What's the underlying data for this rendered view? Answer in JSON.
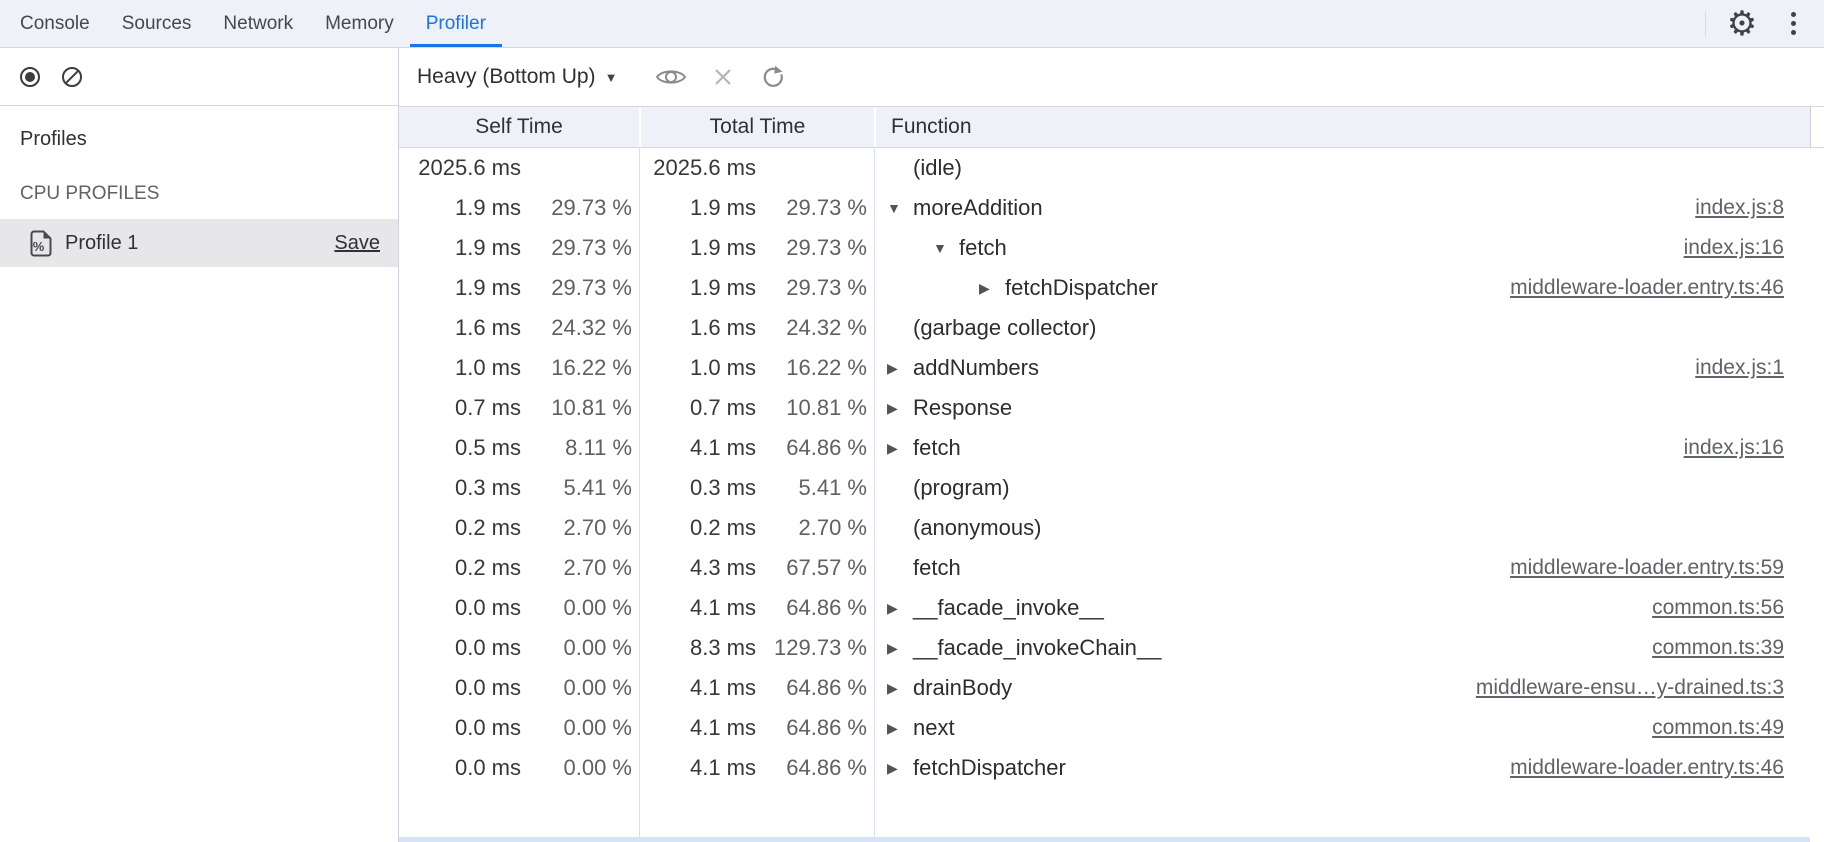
{
  "colors": {
    "accent_blue": "#1a73e8",
    "panel_header_bg": "#eef1f8",
    "grid_border": "#d9e1f1",
    "selected_profile_bg": "#e7e7e9",
    "link_gray": "#5f6368"
  },
  "tabbar": {
    "tabs": [
      {
        "id": "console",
        "label": "Console"
      },
      {
        "id": "sources",
        "label": "Sources"
      },
      {
        "id": "network",
        "label": "Network"
      },
      {
        "id": "memory",
        "label": "Memory"
      },
      {
        "id": "profiler",
        "label": "Profiler"
      }
    ],
    "active_tab": "Profiler",
    "right_icons": [
      "gear-icon",
      "kebab-menu-icon"
    ]
  },
  "sidebar": {
    "toolbar_icons": [
      "record-icon",
      "clear-icon"
    ],
    "profiles_heading": "Profiles",
    "section_label": "CPU PROFILES",
    "profile": {
      "name": "Profile 1",
      "save_label": "Save",
      "icon": "profile-file-icon"
    }
  },
  "toolbar": {
    "view_mode": "Heavy (Bottom Up)",
    "chevron": "▼",
    "icons": [
      "visibility-eye-icon",
      "close-x-icon",
      "refresh-icon"
    ]
  },
  "tree_icons": {
    "expanded": "▼",
    "collapsed": "▶"
  },
  "table": {
    "columns": [
      "Self Time",
      "Total Time",
      "Function"
    ],
    "rows": [
      {
        "self": "2025.6 ms",
        "self_pct": "",
        "total": "2025.6 ms",
        "total_pct": "",
        "fn": "(idle)",
        "link": "",
        "level": 0,
        "arrow": "none"
      },
      {
        "self": "1.9 ms",
        "self_pct": "29.73 %",
        "total": "1.9 ms",
        "total_pct": "29.73 %",
        "fn": "moreAddition",
        "link": "index.js:8",
        "level": 0,
        "arrow": "expanded"
      },
      {
        "self": "1.9 ms",
        "self_pct": "29.73 %",
        "total": "1.9 ms",
        "total_pct": "29.73 %",
        "fn": "fetch",
        "link": "index.js:16",
        "level": 1,
        "arrow": "expanded"
      },
      {
        "self": "1.9 ms",
        "self_pct": "29.73 %",
        "total": "1.9 ms",
        "total_pct": "29.73 %",
        "fn": "fetchDispatcher",
        "link": "middleware-loader.entry.ts:46",
        "level": 2,
        "arrow": "collapsed"
      },
      {
        "self": "1.6 ms",
        "self_pct": "24.32 %",
        "total": "1.6 ms",
        "total_pct": "24.32 %",
        "fn": "(garbage collector)",
        "link": "",
        "level": 0,
        "arrow": "none"
      },
      {
        "self": "1.0 ms",
        "self_pct": "16.22 %",
        "total": "1.0 ms",
        "total_pct": "16.22 %",
        "fn": "addNumbers",
        "link": "index.js:1",
        "level": 0,
        "arrow": "collapsed"
      },
      {
        "self": "0.7 ms",
        "self_pct": "10.81 %",
        "total": "0.7 ms",
        "total_pct": "10.81 %",
        "fn": "Response",
        "link": "",
        "level": 0,
        "arrow": "collapsed"
      },
      {
        "self": "0.5 ms",
        "self_pct": "8.11 %",
        "total": "4.1 ms",
        "total_pct": "64.86 %",
        "fn": "fetch",
        "link": "index.js:16",
        "level": 0,
        "arrow": "collapsed"
      },
      {
        "self": "0.3 ms",
        "self_pct": "5.41 %",
        "total": "0.3 ms",
        "total_pct": "5.41 %",
        "fn": "(program)",
        "link": "",
        "level": 0,
        "arrow": "none"
      },
      {
        "self": "0.2 ms",
        "self_pct": "2.70 %",
        "total": "0.2 ms",
        "total_pct": "2.70 %",
        "fn": "(anonymous)",
        "link": "",
        "level": 0,
        "arrow": "none"
      },
      {
        "self": "0.2 ms",
        "self_pct": "2.70 %",
        "total": "4.3 ms",
        "total_pct": "67.57 %",
        "fn": "fetch",
        "link": "middleware-loader.entry.ts:59",
        "level": 0,
        "arrow": "none"
      },
      {
        "self": "0.0 ms",
        "self_pct": "0.00 %",
        "total": "4.1 ms",
        "total_pct": "64.86 %",
        "fn": "__facade_invoke__",
        "link": "common.ts:56",
        "level": 0,
        "arrow": "collapsed"
      },
      {
        "self": "0.0 ms",
        "self_pct": "0.00 %",
        "total": "8.3 ms",
        "total_pct": "129.73 %",
        "fn": "__facade_invokeChain__",
        "link": "common.ts:39",
        "level": 0,
        "arrow": "collapsed"
      },
      {
        "self": "0.0 ms",
        "self_pct": "0.00 %",
        "total": "4.1 ms",
        "total_pct": "64.86 %",
        "fn": "drainBody",
        "link": "middleware-ensu…y-drained.ts:3",
        "level": 0,
        "arrow": "collapsed"
      },
      {
        "self": "0.0 ms",
        "self_pct": "0.00 %",
        "total": "4.1 ms",
        "total_pct": "64.86 %",
        "fn": "next",
        "link": "common.ts:49",
        "level": 0,
        "arrow": "collapsed"
      },
      {
        "self": "0.0 ms",
        "self_pct": "0.00 %",
        "total": "4.1 ms",
        "total_pct": "64.86 %",
        "fn": "fetchDispatcher",
        "link": "middleware-loader.entry.ts:46",
        "level": 0,
        "arrow": "collapsed"
      }
    ]
  }
}
